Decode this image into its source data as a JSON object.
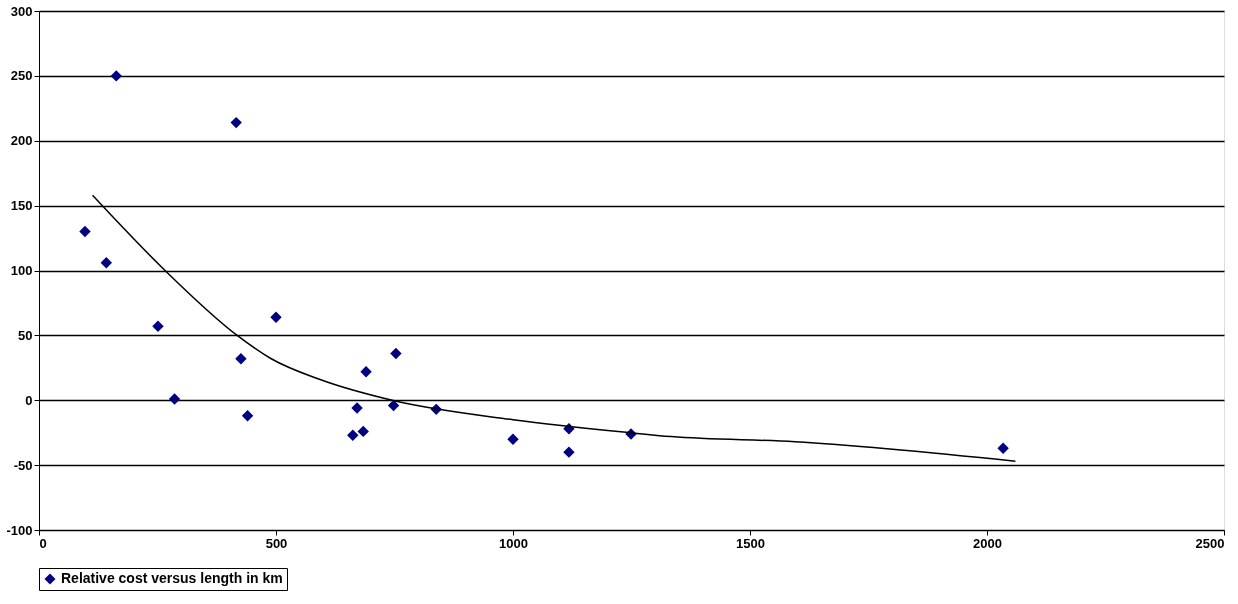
{
  "chart_data": {
    "type": "scatter",
    "x": [
      97,
      142,
      163,
      251,
      286,
      416,
      426,
      440,
      500,
      662,
      671,
      684,
      690,
      748,
      753,
      838,
      1000,
      1118,
      1118,
      1249,
      2034
    ],
    "series": [
      {
        "name": "Relative cost versus length in km",
        "color": "#000080",
        "marker": "diamond",
        "values": [
          130,
          106,
          250,
          57,
          1,
          214,
          32,
          -12,
          64,
          -27,
          -6,
          -24,
          22,
          -4,
          36,
          -7,
          -30,
          -22,
          -40,
          -26,
          -37
        ]
      },
      {
        "type": "line",
        "color": "#000000",
        "x": [
          113,
          266,
          418,
          490,
          593,
          745,
          1000,
          1247,
          1334,
          1595,
          2060
        ],
        "values": [
          158,
          100,
          50,
          32,
          16,
          0,
          -15,
          -25,
          -28,
          -32,
          -47
        ]
      }
    ],
    "xlim": [
      0,
      2500
    ],
    "xticks": [
      0,
      500,
      1000,
      1500,
      2000,
      2500
    ],
    "ylim": [
      -100,
      300
    ],
    "yticks": [
      -100,
      -50,
      0,
      50,
      100,
      150,
      200,
      250,
      300
    ],
    "grid": "y",
    "legend": "bottom"
  }
}
